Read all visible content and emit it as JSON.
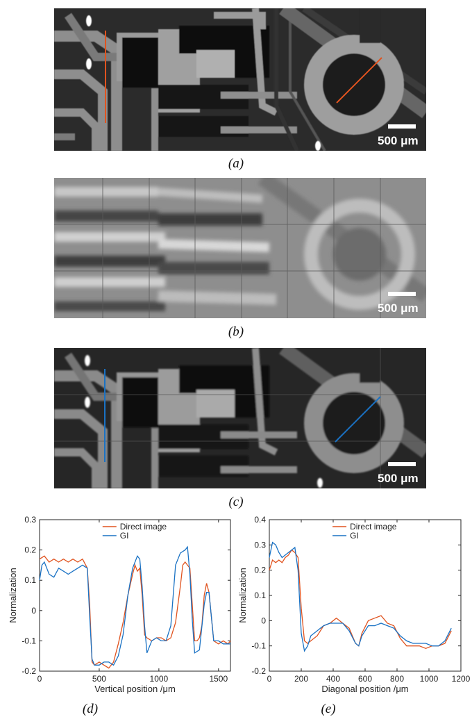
{
  "panels": {
    "a": {
      "label": "(a)",
      "scalebar": "500 μm"
    },
    "b": {
      "label": "(b)",
      "scalebar": "500 μm"
    },
    "c": {
      "label": "(c)",
      "scalebar": "500 μm"
    },
    "d": {
      "label": "(d)"
    },
    "e": {
      "label": "(e)"
    }
  },
  "colors": {
    "direct": "#e0531f",
    "gi": "#1a72c4",
    "line_a": "#e0531f",
    "line_c": "#1a72c4"
  },
  "chart_data": [
    {
      "type": "line",
      "panel": "d",
      "xlabel": "Vertical position /μm",
      "ylabel": "Normalization",
      "xlim": [
        0,
        1600
      ],
      "ylim": [
        -0.2,
        0.3
      ],
      "xticks": [
        0,
        500,
        1000,
        1500
      ],
      "yticks": [
        -0.2,
        -0.1,
        0,
        0.1,
        0.2,
        0.3
      ],
      "legend": "top-center",
      "series": [
        {
          "name": "Direct image",
          "x": [
            0,
            40,
            80,
            120,
            160,
            200,
            240,
            280,
            320,
            360,
            400,
            420,
            440,
            460,
            500,
            540,
            580,
            620,
            660,
            700,
            740,
            780,
            800,
            820,
            840,
            860,
            880,
            900,
            940,
            980,
            1020,
            1060,
            1100,
            1140,
            1180,
            1200,
            1220,
            1240,
            1260,
            1280,
            1300,
            1320,
            1340,
            1360,
            1380,
            1400,
            1420,
            1440,
            1460,
            1500,
            1540,
            1580,
            1600
          ],
          "y": [
            0.17,
            0.18,
            0.16,
            0.17,
            0.16,
            0.17,
            0.16,
            0.17,
            0.16,
            0.17,
            0.14,
            0.02,
            -0.17,
            -0.18,
            -0.17,
            -0.18,
            -0.19,
            -0.17,
            -0.11,
            -0.04,
            0.05,
            0.12,
            0.15,
            0.13,
            0.14,
            0.05,
            -0.08,
            -0.09,
            -0.1,
            -0.09,
            -0.09,
            -0.1,
            -0.09,
            -0.04,
            0.08,
            0.15,
            0.16,
            0.15,
            0.14,
            0.02,
            -0.1,
            -0.1,
            -0.09,
            -0.05,
            0.05,
            0.09,
            0.06,
            -0.02,
            -0.1,
            -0.11,
            -0.1,
            -0.11,
            -0.1
          ]
        },
        {
          "name": "GI",
          "x": [
            0,
            20,
            40,
            80,
            120,
            160,
            200,
            240,
            280,
            320,
            360,
            400,
            420,
            440,
            460,
            500,
            540,
            580,
            620,
            660,
            700,
            740,
            780,
            820,
            840,
            860,
            880,
            900,
            940,
            980,
            1020,
            1060,
            1100,
            1140,
            1180,
            1220,
            1240,
            1260,
            1280,
            1300,
            1340,
            1380,
            1400,
            1420,
            1440,
            1460,
            1500,
            1540,
            1600
          ],
          "y": [
            0.1,
            0.15,
            0.16,
            0.12,
            0.11,
            0.14,
            0.13,
            0.12,
            0.13,
            0.14,
            0.15,
            0.14,
            -0.02,
            -0.16,
            -0.18,
            -0.18,
            -0.17,
            -0.17,
            -0.18,
            -0.15,
            -0.08,
            0.05,
            0.14,
            0.18,
            0.17,
            0.08,
            -0.05,
            -0.14,
            -0.1,
            -0.09,
            -0.1,
            -0.1,
            -0.05,
            0.15,
            0.19,
            0.2,
            0.21,
            0.12,
            -0.03,
            -0.14,
            -0.13,
            0.02,
            0.06,
            0.06,
            -0.02,
            -0.1,
            -0.1,
            -0.11,
            -0.11
          ]
        }
      ]
    },
    {
      "type": "line",
      "panel": "e",
      "xlabel": "Diagonal position /μm",
      "ylabel": "Normalization",
      "xlim": [
        0,
        1200
      ],
      "ylim": [
        -0.2,
        0.4
      ],
      "xticks": [
        0,
        200,
        400,
        600,
        800,
        1000,
        1200
      ],
      "yticks": [
        -0.2,
        -0.1,
        0,
        0.1,
        0.2,
        0.3,
        0.4
      ],
      "legend": "top-center",
      "series": [
        {
          "name": "Direct image",
          "x": [
            0,
            20,
            40,
            60,
            80,
            100,
            120,
            140,
            160,
            180,
            200,
            220,
            240,
            260,
            300,
            340,
            380,
            420,
            460,
            500,
            540,
            560,
            580,
            620,
            660,
            700,
            740,
            780,
            820,
            860,
            900,
            940,
            980,
            1020,
            1060,
            1100,
            1140
          ],
          "y": [
            0.2,
            0.24,
            0.23,
            0.24,
            0.23,
            0.25,
            0.26,
            0.28,
            0.27,
            0.25,
            0.05,
            -0.08,
            -0.09,
            -0.08,
            -0.06,
            -0.02,
            -0.01,
            0.01,
            -0.01,
            -0.03,
            -0.09,
            -0.1,
            -0.05,
            0.0,
            0.01,
            0.02,
            -0.01,
            -0.02,
            -0.07,
            -0.1,
            -0.1,
            -0.1,
            -0.11,
            -0.1,
            -0.1,
            -0.09,
            -0.04
          ]
        },
        {
          "name": "GI",
          "x": [
            0,
            20,
            40,
            60,
            80,
            100,
            120,
            140,
            160,
            180,
            200,
            220,
            240,
            260,
            300,
            340,
            380,
            420,
            460,
            500,
            540,
            560,
            580,
            620,
            660,
            700,
            740,
            780,
            820,
            860,
            900,
            940,
            980,
            1020,
            1060,
            1100,
            1140
          ],
          "y": [
            0.25,
            0.31,
            0.3,
            0.27,
            0.25,
            0.26,
            0.27,
            0.28,
            0.29,
            0.2,
            -0.05,
            -0.12,
            -0.1,
            -0.06,
            -0.04,
            -0.02,
            -0.01,
            -0.01,
            -0.01,
            -0.04,
            -0.09,
            -0.1,
            -0.06,
            -0.02,
            -0.02,
            -0.01,
            -0.02,
            -0.03,
            -0.06,
            -0.08,
            -0.09,
            -0.09,
            -0.09,
            -0.1,
            -0.1,
            -0.08,
            -0.03
          ]
        }
      ]
    }
  ]
}
